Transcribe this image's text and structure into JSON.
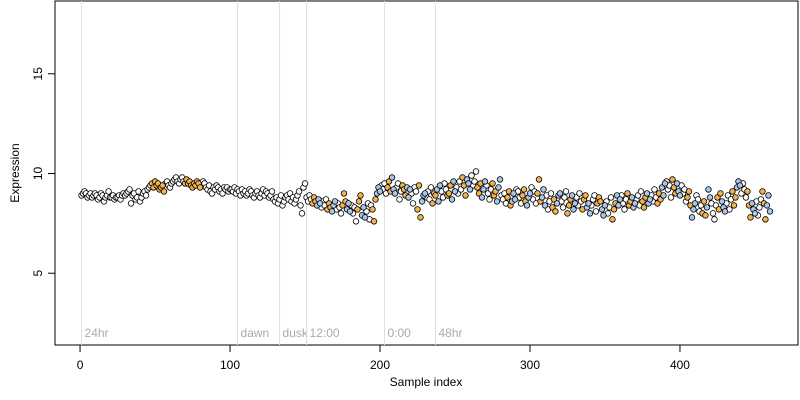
{
  "chart_data": {
    "type": "scatter",
    "xlabel": "Sample index",
    "ylabel": "Expression",
    "xlim": [
      -16.7,
      478.7
    ],
    "ylim": [
      1.4,
      18.65
    ],
    "xticks": [
      0,
      100,
      200,
      300,
      400
    ],
    "yticks": [
      5,
      10,
      15
    ],
    "annotations": [
      {
        "x": 1,
        "label": "24hr"
      },
      {
        "x": 105,
        "label": "dawn"
      },
      {
        "x": 133,
        "label": "dusk"
      },
      {
        "x": 151,
        "label": "12:00"
      },
      {
        "x": 203,
        "label": "0:00"
      },
      {
        "x": 237,
        "label": "48hr"
      }
    ],
    "series": [
      {
        "color": "#ffffff",
        "x": [
          1,
          2,
          3,
          4,
          5,
          6,
          7,
          8,
          9,
          10,
          11,
          12,
          13,
          14,
          15,
          16,
          17,
          18,
          19,
          20,
          21,
          22,
          23,
          24,
          25,
          26,
          27,
          28,
          29,
          30,
          31,
          32,
          33,
          34,
          35,
          36,
          37,
          38,
          39,
          40,
          41,
          42,
          43,
          44,
          45,
          46,
          47,
          57,
          58,
          59,
          60,
          61,
          62,
          63,
          64,
          65,
          66,
          67,
          68,
          69,
          81,
          82,
          83,
          84,
          85,
          86,
          87,
          88,
          89,
          90,
          91,
          92,
          93,
          94,
          95,
          96,
          97,
          98,
          99,
          100,
          101,
          102,
          103,
          104,
          105,
          106,
          107,
          108,
          109,
          110,
          111,
          112,
          113,
          114,
          115,
          116,
          117,
          118,
          119,
          120,
          121,
          122,
          123,
          124,
          125,
          126,
          127,
          128,
          129,
          130,
          131,
          132,
          133,
          134,
          135,
          136,
          137,
          138,
          139,
          140,
          141,
          142,
          143,
          144,
          145,
          146,
          147,
          148,
          149,
          150,
          151,
          152,
          153,
          154,
          161,
          162,
          163,
          164,
          171,
          172,
          173,
          174,
          181,
          182,
          183,
          184,
          191,
          192,
          193,
          194,
          201,
          202,
          203,
          204,
          211,
          212,
          213,
          214,
          221,
          222,
          223,
          224,
          231,
          232,
          233,
          234,
          241,
          242,
          243,
          244,
          251,
          252,
          253,
          254,
          261,
          262,
          263,
          264,
          271,
          272,
          273,
          274,
          281,
          282,
          283,
          284,
          291,
          292,
          293,
          294,
          301,
          302,
          303,
          304,
          311,
          312,
          313,
          314,
          321,
          322,
          323,
          324,
          331,
          332,
          333,
          334,
          341,
          342,
          343,
          344,
          351,
          352,
          353,
          354,
          361,
          362,
          363,
          364,
          371,
          372,
          373,
          374,
          381,
          382,
          383,
          384,
          391,
          392,
          393,
          394,
          401,
          402,
          403,
          404,
          411,
          412,
          413,
          414,
          421,
          422,
          423,
          424,
          431,
          432,
          433,
          434,
          441,
          442,
          443,
          444,
          451,
          452,
          453,
          454
        ],
        "values": [
          8.9,
          9.0,
          9.1,
          9.0,
          8.8,
          8.9,
          9.0,
          8.8,
          8.9,
          9.0,
          8.9,
          8.7,
          8.8,
          9.0,
          8.9,
          8.6,
          8.8,
          8.9,
          9.1,
          8.8,
          8.8,
          8.9,
          8.7,
          8.8,
          8.8,
          8.9,
          8.7,
          8.9,
          9.0,
          8.9,
          9.0,
          9.1,
          9.2,
          8.5,
          8.9,
          9.0,
          8.7,
          8.8,
          9.1,
          8.6,
          8.8,
          9.0,
          9.1,
          8.9,
          9.2,
          9.3,
          9.4,
          9.5,
          9.6,
          9.4,
          9.3,
          9.5,
          9.6,
          9.7,
          9.8,
          9.6,
          9.5,
          9.7,
          9.8,
          9.6,
          9.4,
          9.6,
          9.5,
          9.3,
          9.2,
          9.4,
          9.1,
          9.0,
          9.3,
          9.2,
          9.4,
          9.3,
          9.1,
          9.2,
          9.0,
          9.3,
          9.2,
          9.3,
          9.1,
          9.2,
          9.2,
          9.1,
          9.3,
          9.0,
          9.2,
          9.1,
          8.9,
          9.2,
          9.0,
          9.1,
          8.9,
          9.0,
          9.2,
          9.1,
          8.9,
          8.8,
          9.0,
          9.1,
          8.9,
          8.8,
          9.0,
          9.2,
          8.9,
          9.1,
          9.0,
          8.8,
          8.9,
          9.1,
          8.7,
          8.6,
          8.8,
          8.5,
          8.7,
          8.9,
          8.4,
          8.6,
          8.8,
          8.9,
          8.7,
          9.0,
          8.6,
          8.8,
          8.5,
          8.7,
          8.9,
          9.1,
          8.4,
          8.0,
          9.3,
          9.5,
          8.8,
          8.6,
          8.9,
          8.7,
          8.3,
          8.6,
          8.4,
          8.7,
          8.2,
          8.5,
          8.3,
          8.0,
          8.4,
          8.0,
          8.3,
          7.6,
          8.1,
          8.5,
          7.7,
          8.4,
          9.4,
          9.2,
          9.5,
          9.0,
          9.3,
          9.5,
          8.7,
          9.1,
          9.0,
          8.5,
          9.3,
          9.1,
          8.8,
          9.1,
          8.7,
          9.3,
          9.1,
          8.8,
          9.5,
          9.2,
          9.3,
          9.0,
          9.6,
          9.2,
          9.9,
          9.4,
          9.6,
          10.1,
          9.4,
          9.0,
          8.7,
          9.2,
          8.9,
          8.7,
          9.0,
          8.5,
          9.2,
          9.1,
          8.8,
          8.5,
          9.3,
          8.7,
          9.1,
          8.5,
          8.9,
          8.2,
          8.6,
          9.0,
          8.6,
          8.3,
          8.8,
          9.1,
          8.8,
          8.4,
          9.0,
          8.6,
          8.4,
          8.7,
          8.9,
          8.1,
          8.6,
          8.0,
          8.3,
          8.8,
          8.9,
          8.5,
          8.2,
          8.7,
          8.7,
          8.9,
          8.4,
          9.1,
          8.9,
          8.6,
          9.2,
          8.8,
          9.6,
          9.2,
          9.4,
          8.8,
          9.4,
          9.0,
          9.2,
          8.6,
          8.9,
          8.7,
          8.1,
          8.4,
          8.5,
          8.0,
          7.7,
          8.4,
          8.5,
          8.9,
          8.2,
          8.7,
          9.0,
          9.5,
          9.2,
          8.8,
          8.6,
          7.9,
          8.3,
          8.7
        ]
      },
      {
        "color": "#f5b349",
        "x": [
          48,
          49,
          50,
          51,
          52,
          53,
          54,
          55,
          56,
          70,
          71,
          72,
          73,
          74,
          75,
          76,
          77,
          78,
          79,
          80,
          155,
          156,
          157,
          165,
          166,
          167,
          175,
          176,
          177,
          185,
          186,
          187,
          195,
          196,
          197,
          205,
          206,
          207,
          215,
          216,
          217,
          225,
          226,
          227,
          235,
          236,
          237,
          245,
          246,
          247,
          255,
          256,
          257,
          265,
          266,
          267,
          275,
          276,
          277,
          285,
          286,
          287,
          295,
          296,
          297,
          305,
          306,
          307,
          315,
          316,
          317,
          325,
          326,
          327,
          335,
          336,
          337,
          345,
          346,
          347,
          355,
          356,
          357,
          365,
          366,
          367,
          375,
          376,
          377,
          385,
          386,
          387,
          395,
          396,
          397,
          405,
          406,
          407,
          415,
          416,
          417,
          425,
          426,
          427,
          435,
          436,
          437,
          445,
          446,
          447,
          455,
          456,
          457
        ],
        "values": [
          9.5,
          9.3,
          9.6,
          9.4,
          9.5,
          9.2,
          9.3,
          9.4,
          9.1,
          9.5,
          9.7,
          9.5,
          9.6,
          9.4,
          9.3,
          9.5,
          9.4,
          9.6,
          9.5,
          9.3,
          8.5,
          8.8,
          8.6,
          8.2,
          8.5,
          8.3,
          8.4,
          9.0,
          8.6,
          8.2,
          8.6,
          8.9,
          8.2,
          7.6,
          8.7,
          9.3,
          9.6,
          9.1,
          9.4,
          9.2,
          8.9,
          8.2,
          9.4,
          7.8,
          8.5,
          9.0,
          8.9,
          8.9,
          9.0,
          9.4,
          9.8,
          9.4,
          8.9,
          9.3,
          9.0,
          9.5,
          9.5,
          8.9,
          9.1,
          8.8,
          9.1,
          8.4,
          8.9,
          9.2,
          8.6,
          9.0,
          9.7,
          8.6,
          8.3,
          8.7,
          8.1,
          8.0,
          8.4,
          8.7,
          8.2,
          8.7,
          8.9,
          8.5,
          8.8,
          8.6,
          7.7,
          8.2,
          8.5,
          9.0,
          8.4,
          8.6,
          8.6,
          8.3,
          8.8,
          8.5,
          9.0,
          8.7,
          9.7,
          9.3,
          9.0,
          8.8,
          9.1,
          8.4,
          8.0,
          8.6,
          7.9,
          8.8,
          8.2,
          9.0,
          9.1,
          8.4,
          8.8,
          9.1,
          8.4,
          7.8,
          9.1,
          8.5,
          7.7
        ]
      },
      {
        "color": "#a9c6ea",
        "x": [
          158,
          159,
          160,
          168,
          169,
          170,
          178,
          179,
          180,
          188,
          189,
          190,
          198,
          199,
          200,
          208,
          209,
          210,
          218,
          219,
          220,
          228,
          229,
          230,
          238,
          239,
          240,
          248,
          249,
          250,
          258,
          259,
          260,
          268,
          269,
          270,
          278,
          279,
          280,
          288,
          289,
          290,
          298,
          299,
          300,
          308,
          309,
          310,
          318,
          319,
          320,
          328,
          329,
          330,
          338,
          339,
          340,
          348,
          349,
          350,
          358,
          359,
          360,
          368,
          369,
          370,
          378,
          379,
          380,
          388,
          389,
          390,
          398,
          399,
          400,
          408,
          409,
          410,
          418,
          419,
          420,
          428,
          429,
          430,
          438,
          439,
          440,
          448,
          449,
          450,
          458,
          459,
          460
        ],
        "values": [
          8.4,
          8.7,
          8.5,
          8.1,
          8.4,
          8.6,
          8.2,
          8.5,
          8.1,
          7.9,
          8.3,
          7.8,
          9.0,
          9.3,
          9.1,
          9.8,
          9.2,
          9.0,
          9.3,
          8.8,
          9.2,
          8.6,
          8.9,
          9.0,
          9.2,
          8.6,
          9.4,
          8.7,
          9.6,
          9.1,
          9.7,
          9.5,
          9.2,
          8.8,
          9.2,
          9.6,
          8.6,
          9.3,
          9.7,
          8.6,
          9.0,
          8.7,
          8.4,
          8.8,
          9.0,
          8.8,
          9.2,
          8.4,
          8.5,
          8.9,
          9.0,
          8.9,
          8.2,
          8.5,
          8.3,
          8.5,
          8.0,
          8.2,
          7.9,
          8.4,
          8.9,
          8.4,
          8.7,
          8.8,
          8.3,
          8.5,
          9.0,
          8.5,
          8.7,
          9.3,
          8.9,
          9.5,
          9.5,
          9.1,
          8.9,
          7.8,
          8.2,
          8.5,
          8.3,
          9.2,
          8.8,
          8.6,
          8.3,
          8.1,
          9.3,
          9.6,
          9.4,
          8.5,
          8.2,
          8.0,
          8.4,
          8.9,
          8.1
        ]
      }
    ]
  }
}
